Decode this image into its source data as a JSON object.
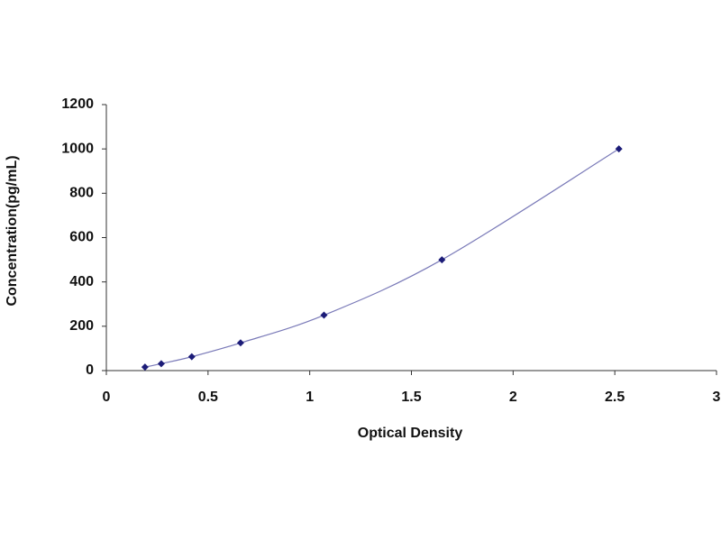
{
  "chart_data": {
    "type": "scatter",
    "x_label": "Optical Density",
    "y_label": "Concentration(pg/mL)",
    "series": [
      {
        "x": [
          0.19,
          0.27,
          0.42,
          0.66,
          1.07,
          1.65,
          2.52
        ],
        "values": [
          15.6,
          31.25,
          62.5,
          125,
          250,
          500,
          1000
        ],
        "color": "#1c1c78",
        "line_color": "#7a7ab8"
      }
    ],
    "xlim": [
      0,
      3
    ],
    "xticks": [
      0,
      0.5,
      1,
      1.5,
      2,
      2.5,
      3
    ],
    "ylim": [
      0,
      1200
    ],
    "yticks": [
      0,
      200,
      400,
      600,
      800,
      1000,
      1200
    ],
    "grid": false
  }
}
